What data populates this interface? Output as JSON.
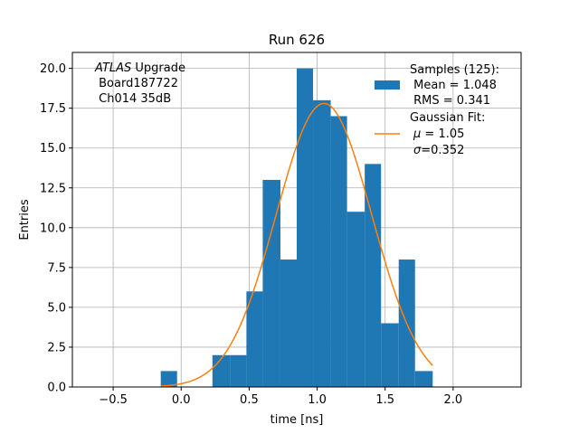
{
  "chart_data": {
    "type": "bar",
    "title": "Run 626",
    "xlabel": "time [ns]",
    "ylabel": "Entries",
    "xlim": [
      -0.8,
      2.5
    ],
    "ylim": [
      0,
      21
    ],
    "grid": true,
    "x_ticks": [
      "−0.5",
      "0.0",
      "0.5",
      "1.0",
      "1.5",
      "2.0"
    ],
    "x_tick_values": [
      -0.5,
      0.0,
      0.5,
      1.0,
      1.5,
      2.0
    ],
    "y_ticks": [
      "0.0",
      "2.5",
      "5.0",
      "7.5",
      "10.0",
      "12.5",
      "15.0",
      "17.5",
      "20.0"
    ],
    "y_tick_values": [
      0,
      2.5,
      5,
      7.5,
      10,
      12.5,
      15,
      17.5,
      20
    ],
    "histogram": {
      "color": "#1f77b4",
      "bin_edges": [
        -0.15,
        -0.03,
        0.1,
        0.23,
        0.36,
        0.48,
        0.6,
        0.73,
        0.85,
        0.97,
        1.1,
        1.22,
        1.35,
        1.47,
        1.6,
        1.72,
        1.85
      ],
      "counts": [
        1,
        0,
        0,
        2,
        2,
        6,
        13,
        8,
        20,
        18,
        17,
        11,
        14,
        4,
        8,
        1
      ]
    },
    "fit": {
      "color": "#ff7f0e",
      "type": "gaussian",
      "mu": 1.05,
      "sigma": 0.352,
      "amplitude": 17.8,
      "x_range": [
        -0.15,
        1.85
      ]
    },
    "annotation": {
      "line1_italic": "ATLAS",
      "line1_rest": " Upgrade",
      "line2": " Board187722",
      "line3": " Ch014 35dB"
    },
    "legend": {
      "placement": "top-right",
      "hist_label": [
        "Samples (125):",
        " Mean = 1.048",
        " RMS = 0.341"
      ],
      "fit_label_title": "Gaussian Fit:",
      "fit_mu_symbol": "μ",
      "fit_mu_text": " = 1.05",
      "fit_sigma_symbol": "σ",
      "fit_sigma_text": "=0.352"
    }
  }
}
